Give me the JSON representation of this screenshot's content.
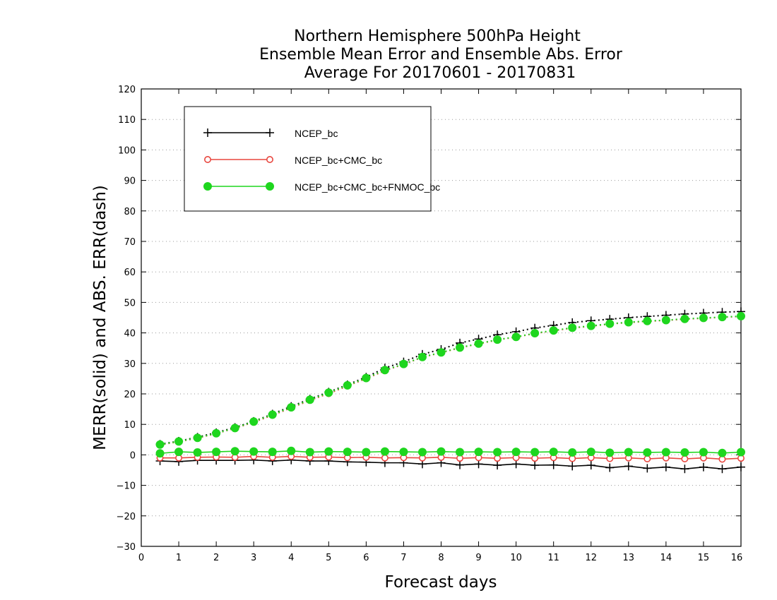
{
  "chart_data": {
    "type": "line",
    "title": [
      "Northern Hemisphere 500hPa Height",
      "Ensemble Mean Error and Ensemble Abs. Error",
      "Average For 20170601 - 20170831"
    ],
    "xlabel": "Forecast days",
    "ylabel": "MERR(solid) and ABS. ERR(dash)",
    "xlim": [
      0,
      16
    ],
    "ylim": [
      -30,
      120
    ],
    "xticks": [
      0,
      1,
      2,
      3,
      4,
      5,
      6,
      7,
      8,
      9,
      10,
      11,
      12,
      13,
      14,
      15,
      16
    ],
    "yticks": [
      -30,
      -20,
      -10,
      0,
      10,
      20,
      30,
      40,
      50,
      60,
      70,
      80,
      90,
      100,
      110,
      120
    ],
    "ytick_labels": [
      "−30",
      "−20",
      "−10",
      "0",
      "10",
      "20",
      "30",
      "40",
      "50",
      "60",
      "70",
      "80",
      "90",
      "100",
      "110",
      "120"
    ],
    "grid": "horizontal dotted",
    "legend_position": "top-left",
    "x": [
      0.5,
      1,
      1.5,
      2,
      2.5,
      3,
      3.5,
      4,
      4.5,
      5,
      5.5,
      6,
      6.5,
      7,
      7.5,
      8,
      8.5,
      9,
      9.5,
      10,
      10.5,
      11,
      11.5,
      12,
      12.5,
      13,
      13.5,
      14,
      14.5,
      15,
      15.5,
      16
    ],
    "series": [
      {
        "name": "NCEP_bc",
        "color": "#000000",
        "marker": "plus",
        "merr": [
          -2,
          -2.2,
          -1.8,
          -1.8,
          -1.8,
          -1.7,
          -2.0,
          -1.7,
          -2.0,
          -2.0,
          -2.3,
          -2.4,
          -2.6,
          -2.6,
          -3.0,
          -2.6,
          -3.3,
          -3.0,
          -3.4,
          -3.0,
          -3.4,
          -3.3,
          -3.7,
          -3.4,
          -4.2,
          -3.7,
          -4.4,
          -4.0,
          -4.6,
          -4.0,
          -4.6,
          -4.0
        ],
        "abs_err": [
          3.5,
          4.5,
          5.8,
          7.3,
          9.0,
          11.0,
          13.4,
          15.9,
          18.3,
          20.6,
          23.0,
          25.5,
          28.5,
          30.5,
          33.0,
          34.6,
          36.7,
          38.0,
          39.4,
          40.4,
          41.6,
          42.5,
          43.4,
          44.0,
          44.5,
          45.0,
          45.4,
          45.8,
          46.2,
          46.5,
          46.8,
          47.0
        ]
      },
      {
        "name": "NCEP_bc+CMC_bc",
        "color": "#e8473f",
        "marker": "open-circle",
        "merr": [
          -1.0,
          -1.0,
          -0.8,
          -0.7,
          -0.8,
          -0.5,
          -0.8,
          -0.5,
          -0.8,
          -0.7,
          -0.9,
          -0.8,
          -1.0,
          -0.9,
          -1.0,
          -0.8,
          -1.1,
          -0.9,
          -1.1,
          -0.9,
          -1.1,
          -0.9,
          -1.2,
          -0.9,
          -1.2,
          -1.0,
          -1.3,
          -1.0,
          -1.3,
          -1.0,
          -1.4,
          -1.1
        ],
        "abs_err": [
          3.3,
          4.3,
          5.5,
          7.0,
          8.7,
          10.7,
          13.0,
          15.4,
          17.9,
          20.1,
          22.6,
          25.0,
          27.6,
          29.7,
          32.0,
          33.5,
          35.1,
          36.4,
          37.7,
          38.6,
          39.8,
          40.7,
          41.6,
          42.2,
          42.9,
          43.4,
          43.8,
          44.1,
          44.5,
          44.8,
          45.1,
          45.4
        ]
      },
      {
        "name": "NCEP_bc+CMC_bc+FNMOC_bc",
        "color": "#1ed61e",
        "marker": "filled-circle",
        "merr": [
          0.5,
          1.0,
          0.8,
          1.0,
          1.2,
          1.1,
          1.0,
          1.3,
          0.9,
          1.1,
          1.0,
          0.9,
          1.1,
          1.0,
          0.9,
          1.1,
          0.9,
          1.0,
          0.9,
          1.0,
          0.9,
          1.0,
          0.8,
          1.0,
          0.7,
          0.9,
          0.8,
          0.9,
          0.8,
          0.9,
          0.6,
          0.9
        ],
        "abs_err": [
          3.4,
          4.4,
          5.6,
          7.1,
          8.8,
          10.9,
          13.2,
          15.6,
          18.1,
          20.4,
          22.8,
          25.2,
          27.8,
          29.8,
          32.1,
          33.6,
          35.2,
          36.5,
          37.8,
          38.7,
          39.9,
          40.8,
          41.7,
          42.3,
          43.0,
          43.5,
          43.9,
          44.2,
          44.6,
          44.9,
          45.2,
          45.5
        ]
      }
    ]
  }
}
